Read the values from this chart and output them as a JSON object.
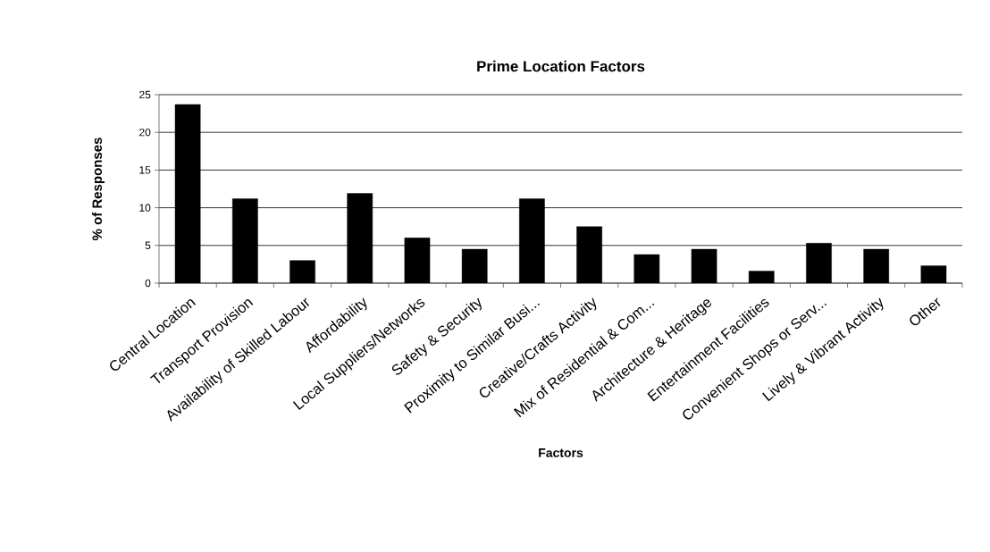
{
  "chart_data": {
    "type": "bar",
    "title": "Prime Location Factors",
    "xlabel": "Factors",
    "ylabel": "% of Responses",
    "categories": [
      "Central Location",
      "Transport Provision",
      "Availability of Skilled Labour",
      "Affordability",
      "Local Suppliers/Networks",
      "Safety & Security",
      "Proximity to Similar Busi...",
      "Creative/Crafts Activity",
      "Mix of Residential & Com...",
      "Architecture & Heritage",
      "Entertainment Facilities",
      "Convenient Shops or Serv...",
      "Lively & Vibrant Activity",
      "Other"
    ],
    "values": [
      23.7,
      11.2,
      3.0,
      11.9,
      6.0,
      4.5,
      11.2,
      7.5,
      3.8,
      4.5,
      1.6,
      5.3,
      4.5,
      2.3
    ],
    "color": "#000000",
    "ylim": [
      0,
      25
    ],
    "yticks": [
      0,
      5,
      10,
      15,
      20,
      25
    ],
    "grid": "y"
  }
}
